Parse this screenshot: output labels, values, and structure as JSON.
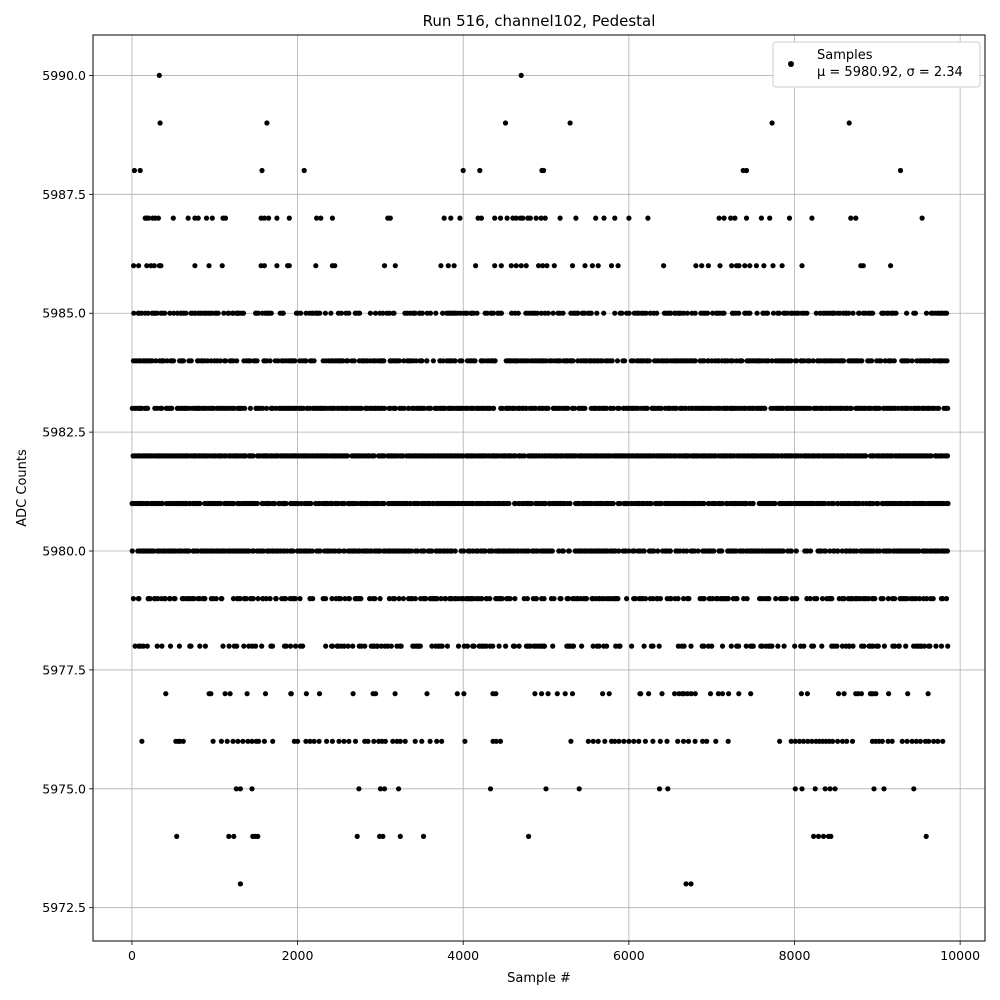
{
  "chart_data": {
    "type": "scatter",
    "title": "Run 516, channel102, Pedestal",
    "xlabel": "Sample #",
    "ylabel": "ADC Counts",
    "xlim": [
      -470,
      10300
    ],
    "ylim": [
      5971.8,
      5990.85
    ],
    "xticks": [
      0,
      2000,
      4000,
      6000,
      8000,
      10000
    ],
    "xtick_labels": [
      "0",
      "2000",
      "4000",
      "6000",
      "8000",
      "10000"
    ],
    "yticks": [
      5972.5,
      5975.0,
      5977.5,
      5980.0,
      5982.5,
      5985.0,
      5987.5,
      5990.0
    ],
    "ytick_labels": [
      "5972.5",
      "5975.0",
      "5977.5",
      "5980.0",
      "5982.5",
      "5985.0",
      "5987.5",
      "5990.0"
    ],
    "grid": true,
    "legend": {
      "position": "top-right",
      "label": "Samples",
      "stats_line": "μ = 5980.92, σ = 2.34"
    },
    "marker_color": "#000000",
    "series": [
      {
        "name": "Samples",
        "n_samples": 9850,
        "levels": [
          {
            "y": 5990,
            "x": [
              330,
              4700
            ]
          },
          {
            "y": 5989,
            "x": [
              340,
              1630,
              4510,
              5290,
              7730,
              8660
            ]
          },
          {
            "y": 5988,
            "x": [
              30,
              100,
              1570,
              2080,
              4000,
              4200,
              4950,
              4970,
              7380,
              7420,
              9280
            ]
          },
          {
            "y": 5987,
            "x": [
              160,
              180,
              200,
              250,
              280,
              320,
              500,
              680,
              760,
              800,
              900,
              970,
              1100,
              1130,
              1560,
              1600,
              1650,
              1750,
              1900,
              2230,
              2280,
              2420,
              3090,
              3120,
              3770,
              3850,
              3960,
              4180,
              4220,
              4380,
              4450,
              4530,
              4600,
              4640,
              4690,
              4720,
              4780,
              4810,
              4880,
              4940,
              4990,
              5170,
              5360,
              5600,
              5700,
              5830,
              6000,
              6230,
              7090,
              7150,
              7230,
              7280,
              7420,
              7600,
              7700,
              7940,
              8210,
              8680,
              8740,
              9540
            ]
          },
          {
            "y": 5986,
            "x": [
              20,
              80,
              180,
              230,
              270,
              330,
              350,
              760,
              930,
              1090,
              1560,
              1600,
              1750,
              1880,
              1900,
              2220,
              2420,
              2450,
              3050,
              3180,
              3730,
              3820,
              3890,
              4150,
              4380,
              4460,
              4580,
              4640,
              4700,
              4760,
              4910,
              4960,
              5010,
              5100,
              5320,
              5470,
              5560,
              5630,
              5790,
              5870,
              6420,
              6810,
              6880,
              6960,
              7100,
              7240,
              7300,
              7330,
              7400,
              7460,
              7540,
              7630,
              7740,
              7850,
              8090,
              8800,
              8830,
              9160
            ]
          },
          {
            "y": 5976,
            "x": [
              120,
              530,
              560,
              580,
              620,
              980,
              1080,
              1150,
              1220,
              1280,
              1340,
              1400,
              1450,
              1500,
              1530,
              1600,
              1700,
              1960,
              2000,
              2100,
              2150,
              2200,
              2260,
              2350,
              2420,
              2500,
              2560,
              2620,
              2700,
              2810,
              2850,
              2920,
              2980,
              3020,
              3060,
              3150,
              3200,
              3240,
              3300,
              3420,
              3500,
              3600,
              3680,
              3740,
              4020,
              4360,
              4400,
              4450,
              5300,
              5510,
              5570,
              5630,
              5710,
              5790,
              5830,
              5880,
              5940,
              6000,
              6060,
              6120,
              6200,
              6290,
              6380,
              6460,
              6590,
              6660,
              6720,
              6800,
              6890,
              6940,
              7050,
              7200,
              7820,
              7960,
              8010,
              8060,
              8110,
              8160,
              8210,
              8260,
              8300,
              8340,
              8380,
              8420,
              8460,
              8520,
              8580,
              8630,
              8700,
              8940,
              8980,
              9020,
              9060,
              9130,
              9180,
              9300,
              9360,
              9420,
              9470,
              9520,
              9580,
              9620,
              9680,
              9730,
              9790
            ]
          },
          {
            "y": 5975,
            "x": [
              1260,
              1310,
              1450,
              2740,
              3000,
              3050,
              3220,
              4330,
              5000,
              5400,
              6370,
              6470,
              8010,
              8090,
              8250,
              8370,
              8430,
              8490,
              8960,
              9080,
              9440
            ]
          },
          {
            "y": 5974,
            "x": [
              540,
              1170,
              1230,
              1460,
              1490,
              1520,
              2720,
              2990,
              3030,
              3240,
              3520,
              4790,
              8230,
              8290,
              8350,
              8410,
              8440,
              9590
            ]
          },
          {
            "y": 5973,
            "x": [
              1310,
              6690,
              6750
            ]
          }
        ],
        "dense_levels": [
          {
            "y": 5977,
            "x_range": [
              0,
              9850
            ],
            "density": 0.12
          },
          {
            "y": 5978,
            "x_range": [
              0,
              9850
            ],
            "density": 0.35
          },
          {
            "y": 5979,
            "x_range": [
              0,
              9850
            ],
            "density": 0.55
          },
          {
            "y": 5980,
            "x_range": [
              0,
              9850
            ],
            "density": 0.8
          },
          {
            "y": 5981,
            "x_range": [
              0,
              9850
            ],
            "density": 0.9
          },
          {
            "y": 5982,
            "x_range": [
              0,
              9850
            ],
            "density": 0.95
          },
          {
            "y": 5983,
            "x_range": [
              0,
              9850
            ],
            "density": 0.85
          },
          {
            "y": 5984,
            "x_range": [
              0,
              9850
            ],
            "density": 0.7
          },
          {
            "y": 5985,
            "x_range": [
              0,
              9850
            ],
            "density": 0.5
          }
        ]
      }
    ]
  }
}
